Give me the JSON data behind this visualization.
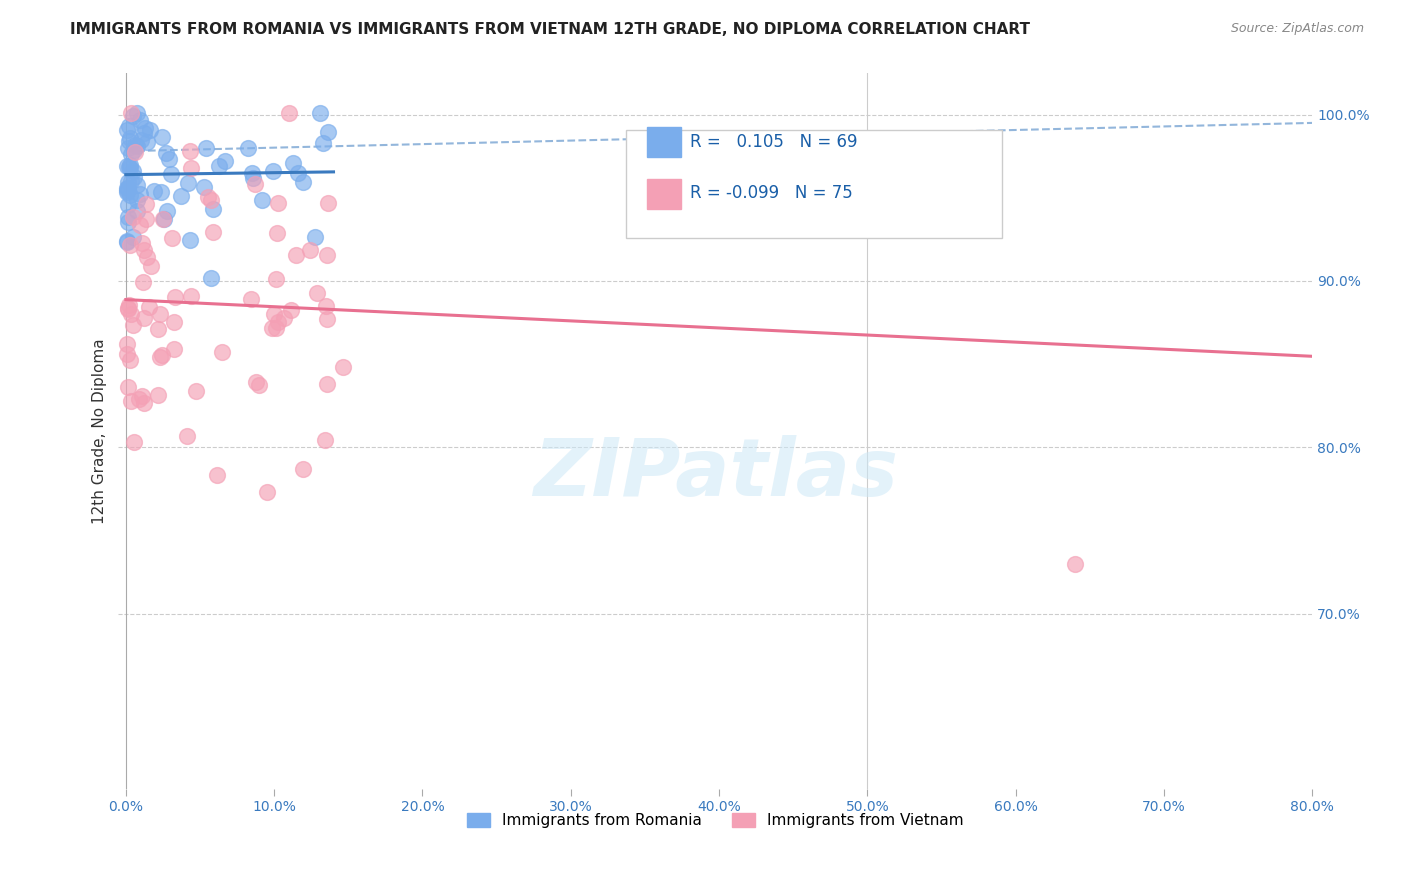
{
  "title": "IMMIGRANTS FROM ROMANIA VS IMMIGRANTS FROM VIETNAM 12TH GRADE, NO DIPLOMA CORRELATION CHART",
  "source": "Source: ZipAtlas.com",
  "ylabel": "12th Grade, No Diploma",
  "yaxis_ticks": [
    0.7,
    0.8,
    0.9,
    1.0
  ],
  "yaxis_labels": [
    "70.0%",
    "80.0%",
    "90.0%",
    "100.0%"
  ],
  "xaxis_ticks": [
    0.0,
    0.1,
    0.2,
    0.3,
    0.4,
    0.5,
    0.6,
    0.7,
    0.8
  ],
  "xaxis_labels": [
    "0.0%",
    "10.0%",
    "20.0%",
    "30.0%",
    "40.0%",
    "50.0%",
    "60.0%",
    "70.0%",
    "80.0%"
  ],
  "romania_R": 0.105,
  "romania_N": 69,
  "vietnam_R": -0.099,
  "vietnam_N": 75,
  "romania_color": "#7aadec",
  "vietnam_color": "#f4a0b5",
  "trendline_romania_color": "#3a7abf",
  "trendline_vietnam_color": "#e87090",
  "background_color": "#ffffff",
  "watermark": "ZIPatlas",
  "legend_romania": "Immigrants from Romania",
  "legend_vietnam": "Immigrants from Vietnam",
  "xlim": [
    -0.005,
    0.8
  ],
  "ylim": [
    0.595,
    1.025
  ]
}
